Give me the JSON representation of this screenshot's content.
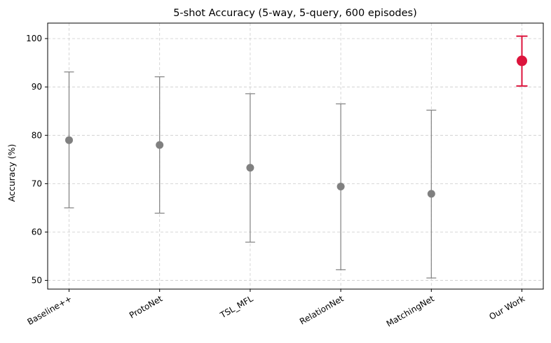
{
  "chart_data": {
    "type": "scatter",
    "title": "5-shot Accuracy (5-way, 5-query, 600 episodes)",
    "xlabel": "",
    "ylabel": "Accuracy (%)",
    "categories": [
      "Baseline++",
      "ProtoNet",
      "TSL_MFL",
      "RelationNet",
      "MatchingNet",
      "Our Work"
    ],
    "values": [
      79.0,
      78.0,
      73.3,
      69.4,
      67.9,
      95.4
    ],
    "lower": [
      65.0,
      63.9,
      57.9,
      52.2,
      50.5,
      90.2
    ],
    "upper": [
      93.1,
      92.1,
      88.6,
      86.5,
      85.2,
      100.5
    ],
    "ylim": [
      48.2,
      103.2
    ],
    "yticks": [
      50,
      60,
      70,
      80,
      90,
      100
    ],
    "grid": true,
    "colors": [
      "#808080",
      "#808080",
      "#808080",
      "#808080",
      "#808080",
      "#dc143c"
    ],
    "highlight_index": 5
  }
}
